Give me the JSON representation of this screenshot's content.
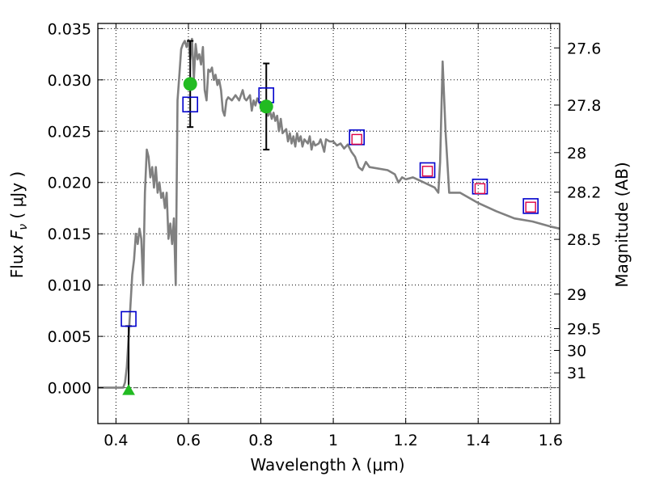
{
  "chart_data": {
    "type": "scatter",
    "xlabel": "Wavelength  λ (μm)",
    "ylabel": "Flux  F_ν  ( μJy )",
    "ylabel_parts": {
      "pre": "Flux  ",
      "var": "F",
      "sub": "ν",
      "post": "  ( μJy )"
    },
    "y2label": "Magnitude (AB)",
    "xlim": [
      0.35,
      1.625
    ],
    "ylim": [
      -0.0035,
      0.0355
    ],
    "grid": true,
    "x_ticks": [
      {
        "value": 0.4,
        "label": "0.4"
      },
      {
        "value": 0.6,
        "label": "0.6"
      },
      {
        "value": 0.8,
        "label": "0.8"
      },
      {
        "value": 1.0,
        "label": "1"
      },
      {
        "value": 1.2,
        "label": "1.2"
      },
      {
        "value": 1.4,
        "label": "1.4"
      },
      {
        "value": 1.6,
        "label": "1.6"
      }
    ],
    "y_ticks": [
      {
        "value": 0.0,
        "label": "0.000"
      },
      {
        "value": 0.005,
        "label": "0.005"
      },
      {
        "value": 0.01,
        "label": "0.010"
      },
      {
        "value": 0.015,
        "label": "0.015"
      },
      {
        "value": 0.02,
        "label": "0.020"
      },
      {
        "value": 0.025,
        "label": "0.025"
      },
      {
        "value": 0.03,
        "label": "0.030"
      },
      {
        "value": 0.035,
        "label": "0.035"
      }
    ],
    "mag_ticks": [
      {
        "value": 27.6,
        "label": "27.6"
      },
      {
        "value": 27.8,
        "label": "27.8"
      },
      {
        "value": 28.0,
        "label": "28"
      },
      {
        "value": 28.2,
        "label": "28.2"
      },
      {
        "value": 28.5,
        "label": "28.5"
      },
      {
        "value": 29.0,
        "label": "29"
      },
      {
        "value": 29.5,
        "label": "29.5"
      },
      {
        "value": 30.0,
        "label": "30"
      },
      {
        "value": 31.0,
        "label": "31"
      }
    ],
    "series": [
      {
        "kind": "model_sed",
        "color": "#808080",
        "points": [
          [
            0.35,
            0.0
          ],
          [
            0.42,
            0.0
          ],
          [
            0.425,
            0.0005
          ],
          [
            0.43,
            0.002
          ],
          [
            0.435,
            0.005
          ],
          [
            0.44,
            0.008
          ],
          [
            0.445,
            0.011
          ],
          [
            0.45,
            0.0125
          ],
          [
            0.455,
            0.015
          ],
          [
            0.46,
            0.014
          ],
          [
            0.465,
            0.0155
          ],
          [
            0.47,
            0.0145
          ],
          [
            0.475,
            0.01
          ],
          [
            0.48,
            0.019
          ],
          [
            0.485,
            0.0232
          ],
          [
            0.49,
            0.0225
          ],
          [
            0.495,
            0.0205
          ],
          [
            0.5,
            0.0215
          ],
          [
            0.505,
            0.0195
          ],
          [
            0.51,
            0.0215
          ],
          [
            0.515,
            0.019
          ],
          [
            0.52,
            0.02
          ],
          [
            0.525,
            0.0185
          ],
          [
            0.53,
            0.019
          ],
          [
            0.535,
            0.0175
          ],
          [
            0.54,
            0.019
          ],
          [
            0.545,
            0.0145
          ],
          [
            0.55,
            0.016
          ],
          [
            0.555,
            0.014
          ],
          [
            0.56,
            0.0165
          ],
          [
            0.565,
            0.01
          ],
          [
            0.57,
            0.028
          ],
          [
            0.575,
            0.0305
          ],
          [
            0.58,
            0.033
          ],
          [
            0.585,
            0.0335
          ],
          [
            0.59,
            0.0338
          ],
          [
            0.595,
            0.0332
          ],
          [
            0.6,
            0.0339
          ],
          [
            0.605,
            0.032
          ],
          [
            0.61,
            0.034
          ],
          [
            0.615,
            0.03
          ],
          [
            0.62,
            0.0335
          ],
          [
            0.625,
            0.032
          ],
          [
            0.63,
            0.0325
          ],
          [
            0.635,
            0.0315
          ],
          [
            0.64,
            0.0332
          ],
          [
            0.645,
            0.029
          ],
          [
            0.65,
            0.028
          ],
          [
            0.655,
            0.031
          ],
          [
            0.66,
            0.0308
          ],
          [
            0.665,
            0.0312
          ],
          [
            0.67,
            0.03
          ],
          [
            0.675,
            0.0305
          ],
          [
            0.68,
            0.0295
          ],
          [
            0.685,
            0.03
          ],
          [
            0.69,
            0.029
          ],
          [
            0.695,
            0.027
          ],
          [
            0.7,
            0.0265
          ],
          [
            0.705,
            0.028
          ],
          [
            0.71,
            0.0283
          ],
          [
            0.72,
            0.028
          ],
          [
            0.73,
            0.0285
          ],
          [
            0.74,
            0.028
          ],
          [
            0.75,
            0.029
          ],
          [
            0.755,
            0.0282
          ],
          [
            0.76,
            0.028
          ],
          [
            0.77,
            0.0285
          ],
          [
            0.775,
            0.027
          ],
          [
            0.78,
            0.028
          ],
          [
            0.785,
            0.0275
          ],
          [
            0.79,
            0.0282
          ],
          [
            0.8,
            0.0275
          ],
          [
            0.81,
            0.027
          ],
          [
            0.815,
            0.028
          ],
          [
            0.82,
            0.0265
          ],
          [
            0.825,
            0.027
          ],
          [
            0.83,
            0.0262
          ],
          [
            0.835,
            0.0268
          ],
          [
            0.84,
            0.026
          ],
          [
            0.845,
            0.0265
          ],
          [
            0.85,
            0.025
          ],
          [
            0.855,
            0.0262
          ],
          [
            0.86,
            0.0248
          ],
          [
            0.87,
            0.0252
          ],
          [
            0.875,
            0.024
          ],
          [
            0.88,
            0.0248
          ],
          [
            0.885,
            0.0238
          ],
          [
            0.89,
            0.0245
          ],
          [
            0.895,
            0.0235
          ],
          [
            0.9,
            0.0248
          ],
          [
            0.905,
            0.024
          ],
          [
            0.91,
            0.0245
          ],
          [
            0.915,
            0.0235
          ],
          [
            0.92,
            0.0242
          ],
          [
            0.93,
            0.0238
          ],
          [
            0.935,
            0.0245
          ],
          [
            0.94,
            0.0232
          ],
          [
            0.945,
            0.024
          ],
          [
            0.95,
            0.0236
          ],
          [
            0.96,
            0.0238
          ],
          [
            0.965,
            0.0242
          ],
          [
            0.97,
            0.0236
          ],
          [
            0.975,
            0.023
          ],
          [
            0.98,
            0.0242
          ],
          [
            0.99,
            0.024
          ],
          [
            1.0,
            0.024
          ],
          [
            1.01,
            0.0236
          ],
          [
            1.02,
            0.0238
          ],
          [
            1.03,
            0.0233
          ],
          [
            1.04,
            0.0237
          ],
          [
            1.05,
            0.023
          ],
          [
            1.06,
            0.0225
          ],
          [
            1.07,
            0.0215
          ],
          [
            1.08,
            0.0212
          ],
          [
            1.09,
            0.022
          ],
          [
            1.1,
            0.0215
          ],
          [
            1.15,
            0.0212
          ],
          [
            1.17,
            0.0208
          ],
          [
            1.18,
            0.02
          ],
          [
            1.19,
            0.0205
          ],
          [
            1.2,
            0.0203
          ],
          [
            1.22,
            0.0205
          ],
          [
            1.25,
            0.02
          ],
          [
            1.28,
            0.0195
          ],
          [
            1.29,
            0.019
          ],
          [
            1.295,
            0.022
          ],
          [
            1.302,
            0.0318
          ],
          [
            1.31,
            0.025
          ],
          [
            1.32,
            0.019
          ],
          [
            1.35,
            0.019
          ],
          [
            1.4,
            0.018
          ],
          [
            1.45,
            0.0172
          ],
          [
            1.5,
            0.0165
          ],
          [
            1.55,
            0.0162
          ],
          [
            1.6,
            0.0157
          ],
          [
            1.625,
            0.0155
          ]
        ]
      },
      {
        "kind": "observed_blue_squares",
        "color": "#0000cc",
        "points": [
          [
            0.435,
            0.0067
          ],
          [
            0.605,
            0.0276
          ],
          [
            0.815,
            0.0285
          ],
          [
            1.065,
            0.0244
          ],
          [
            1.26,
            0.0212
          ],
          [
            1.405,
            0.0196
          ],
          [
            1.545,
            0.0177
          ]
        ]
      },
      {
        "kind": "model_red_squares",
        "color": "#dd0044",
        "points": [
          [
            1.065,
            0.0242
          ],
          [
            1.26,
            0.0211
          ],
          [
            1.405,
            0.0194
          ],
          [
            1.545,
            0.0176
          ]
        ]
      },
      {
        "kind": "green_points",
        "color": "#22bb22",
        "points": [
          {
            "x": 0.605,
            "y": 0.0296,
            "yerr_low": 0.0254,
            "yerr_high": 0.0338
          },
          {
            "x": 0.815,
            "y": 0.0274,
            "yerr_low": 0.0232,
            "yerr_high": 0.0316
          }
        ]
      },
      {
        "kind": "upper_limit_triangle",
        "color": "#22bb22",
        "points": [
          {
            "x": 0.435,
            "y": -0.0002,
            "yerr_low": -0.0002,
            "yerr_high": 0.006
          }
        ]
      }
    ]
  }
}
